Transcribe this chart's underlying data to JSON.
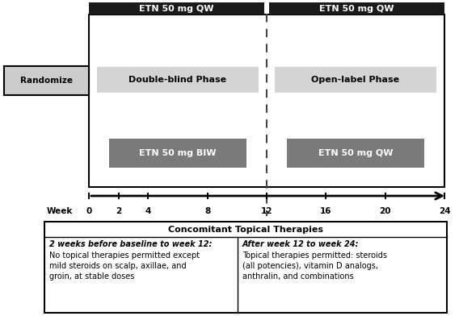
{
  "fig_width": 5.68,
  "fig_height": 3.92,
  "dpi": 100,
  "bg_color": "#ffffff",
  "timeline_weeks": [
    0,
    2,
    4,
    8,
    12,
    16,
    20,
    24
  ],
  "week_label": "Week",
  "randomize_label": "Randomize",
  "randomize_box_color": "#cccccc",
  "randomize_box_edge": "#000000",
  "dark_header_color": "#1a1a1a",
  "dark_header_text_color": "#ffffff",
  "phase_box_color": "#d4d4d4",
  "phase_text_color": "#000000",
  "arm_box_color": "#7a7a7a",
  "arm_text_color": "#ffffff",
  "header_left_label": "ETN 50 mg QW",
  "header_right_label": "ETN 50 mg QW",
  "phase1_label": "Double-blind Phase",
  "phase2_label": "Open-label Phase",
  "arm1_label": "ETN 50 mg BIW",
  "arm2_label": "ETN 50 mg QW",
  "concomitant_title": "Concomitant Topical Therapies",
  "left_bold_text": "2 weeks before baseline to week 12:",
  "left_normal_text": "No topical therapies permitted except\nmild steroids on scalp, axillae, and\ngroin, at stable doses",
  "right_bold_text": "After week 12 to week 24:",
  "right_normal_text": "Topical therapies permitted: steroids\n(all potencies), vitamin D analogs,\nanthralin, and combinations"
}
